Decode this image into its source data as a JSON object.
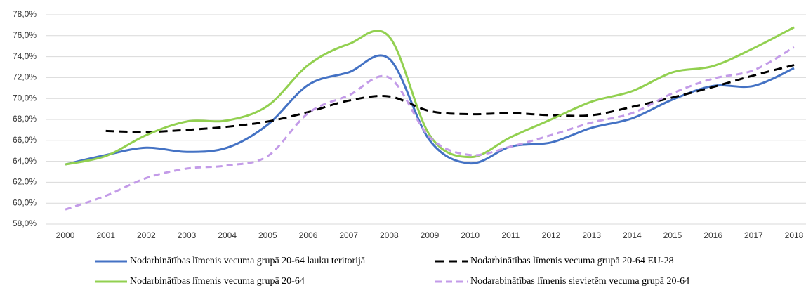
{
  "chart_data": {
    "type": "line",
    "categories": [
      "2000",
      "2001",
      "2002",
      "2003",
      "2004",
      "2005",
      "2006",
      "2007",
      "2008",
      "2009",
      "2010",
      "2011",
      "2012",
      "2013",
      "2014",
      "2015",
      "2016",
      "2017",
      "2018"
    ],
    "series": [
      {
        "name": "Nodarbinātības līmenis vecuma grupā 20-64 lauku teritorijā",
        "color": "#4472c4",
        "dash": "solid",
        "values": [
          63.7,
          64.6,
          65.3,
          64.9,
          65.3,
          67.5,
          71.3,
          72.5,
          73.8,
          66.0,
          63.8,
          65.4,
          65.8,
          67.2,
          68.1,
          69.9,
          71.2,
          71.2,
          72.9
        ]
      },
      {
        "name": "Nodarbinātības līmenis vecuma grupā 20-64 EU-28",
        "color": "#000000",
        "dash": "dashed",
        "values": [
          null,
          66.9,
          66.8,
          67.0,
          67.3,
          67.8,
          68.7,
          69.8,
          70.2,
          68.8,
          68.5,
          68.6,
          68.4,
          68.4,
          69.2,
          70.1,
          71.1,
          72.2,
          73.2
        ]
      },
      {
        "name": "Nodarbinātības līmenis vecuma grupā 20-64",
        "color": "#92d050",
        "dash": "solid",
        "values": [
          63.7,
          64.5,
          66.5,
          67.8,
          67.9,
          69.3,
          73.2,
          75.2,
          75.9,
          66.5,
          64.4,
          66.3,
          68.0,
          69.7,
          70.7,
          72.5,
          73.1,
          74.8,
          76.8
        ]
      },
      {
        "name": "Nodarabinātības līmenis sievietēm vecuma grupā 20-64",
        "color": "#c39be8",
        "dash": "dashed",
        "values": [
          59.4,
          60.7,
          62.4,
          63.3,
          63.6,
          64.5,
          68.6,
          70.3,
          72.0,
          66.3,
          64.6,
          65.4,
          66.5,
          67.7,
          68.6,
          70.5,
          71.9,
          72.7,
          74.9
        ]
      }
    ],
    "ylim": [
      58,
      78
    ],
    "yticks": [
      {
        "value": 58,
        "label": "58,0%"
      },
      {
        "value": 60,
        "label": "60,0%"
      },
      {
        "value": 62,
        "label": "62,0%"
      },
      {
        "value": 64,
        "label": "64,0%"
      },
      {
        "value": 66,
        "label": "66,0%"
      },
      {
        "value": 68,
        "label": "68,0%"
      },
      {
        "value": 70,
        "label": "70,0%"
      },
      {
        "value": 72,
        "label": "72,0%"
      },
      {
        "value": 74,
        "label": "74,0%"
      },
      {
        "value": 76,
        "label": "76,0%"
      },
      {
        "value": 78,
        "label": "78,0%"
      }
    ],
    "grid": true,
    "legend": "bottom"
  }
}
